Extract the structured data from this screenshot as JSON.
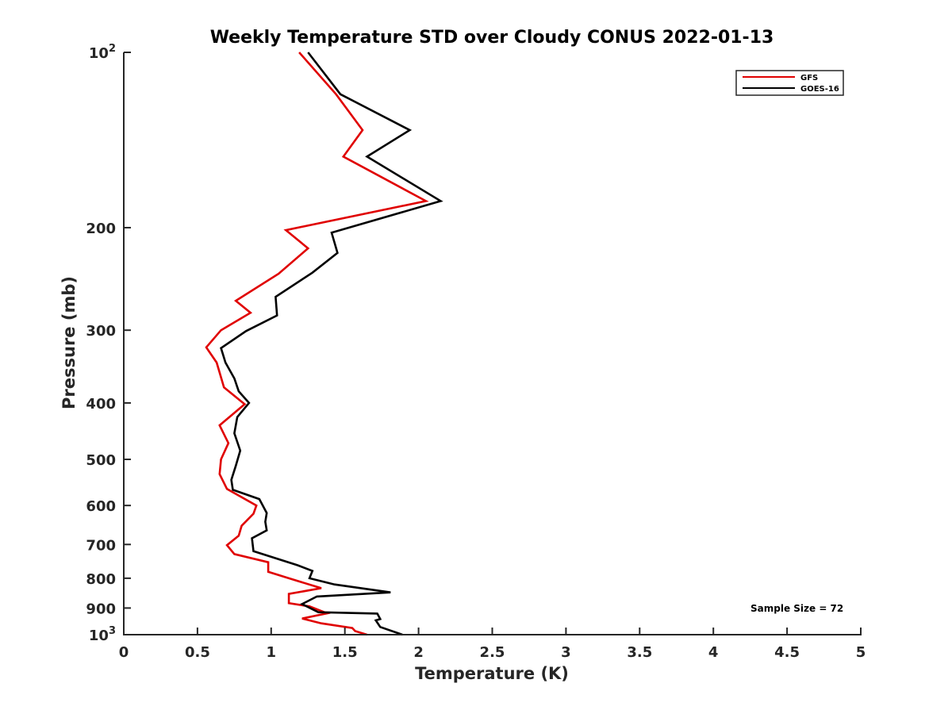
{
  "chart_data": {
    "type": "line",
    "title": "Weekly Temperature STD over Cloudy CONUS 2022-01-13",
    "xlabel": "Temperature (K)",
    "ylabel": "Pressure (mb)",
    "xlim": [
      0,
      5
    ],
    "ylim": [
      100,
      1000
    ],
    "y_scale": "log",
    "y_reversed": true,
    "grid": false,
    "legend_position": "top-right",
    "x_ticks": [
      {
        "value": 0,
        "label": "0"
      },
      {
        "value": 0.5,
        "label": "0.5"
      },
      {
        "value": 1,
        "label": "1"
      },
      {
        "value": 1.5,
        "label": "1.5"
      },
      {
        "value": 2,
        "label": "2"
      },
      {
        "value": 2.5,
        "label": "2.5"
      },
      {
        "value": 3,
        "label": "3"
      },
      {
        "value": 3.5,
        "label": "3.5"
      },
      {
        "value": 4,
        "label": "4"
      },
      {
        "value": 4.5,
        "label": "4.5"
      },
      {
        "value": 5,
        "label": "5"
      }
    ],
    "y_ticks": [
      {
        "value": 100,
        "label": "10",
        "sup": "2"
      },
      {
        "value": 200,
        "label": "200",
        "sup": ""
      },
      {
        "value": 300,
        "label": "300",
        "sup": ""
      },
      {
        "value": 400,
        "label": "400",
        "sup": ""
      },
      {
        "value": 500,
        "label": "500",
        "sup": ""
      },
      {
        "value": 600,
        "label": "600",
        "sup": ""
      },
      {
        "value": 700,
        "label": "700",
        "sup": ""
      },
      {
        "value": 800,
        "label": "800",
        "sup": ""
      },
      {
        "value": 900,
        "label": "900",
        "sup": ""
      },
      {
        "value": 1000,
        "label": "10",
        "sup": "3"
      }
    ],
    "series": [
      {
        "name": "GFS",
        "color": "#e00000",
        "points": [
          [
            1.19,
            100
          ],
          [
            1.44,
            118
          ],
          [
            1.62,
            136
          ],
          [
            1.49,
            151
          ],
          [
            2.05,
            180
          ],
          [
            1.1,
            202
          ],
          [
            1.25,
            217
          ],
          [
            1.05,
            240
          ],
          [
            0.76,
            267
          ],
          [
            0.86,
            280
          ],
          [
            0.66,
            300
          ],
          [
            0.56,
            321
          ],
          [
            0.63,
            341
          ],
          [
            0.68,
            376
          ],
          [
            0.82,
            402
          ],
          [
            0.65,
            437
          ],
          [
            0.71,
            469
          ],
          [
            0.66,
            500
          ],
          [
            0.65,
            530
          ],
          [
            0.7,
            562
          ],
          [
            0.9,
            600
          ],
          [
            0.88,
            620
          ],
          [
            0.8,
            650
          ],
          [
            0.78,
            676
          ],
          [
            0.7,
            702
          ],
          [
            0.75,
            727
          ],
          [
            0.98,
            751
          ],
          [
            0.98,
            780
          ],
          [
            1.12,
            800
          ],
          [
            1.34,
            832
          ],
          [
            1.12,
            851
          ],
          [
            1.12,
            883
          ],
          [
            1.26,
            894
          ],
          [
            1.38,
            919
          ],
          [
            1.21,
            938
          ],
          [
            1.34,
            956
          ],
          [
            1.55,
            974
          ],
          [
            1.57,
            986
          ],
          [
            1.65,
            1000
          ]
        ]
      },
      {
        "name": "GOES-16",
        "color": "#000000",
        "points": [
          [
            1.25,
            100
          ],
          [
            1.47,
            118
          ],
          [
            1.94,
            136
          ],
          [
            1.65,
            151
          ],
          [
            2.15,
            180
          ],
          [
            1.41,
            204
          ],
          [
            1.45,
            221
          ],
          [
            1.28,
            239
          ],
          [
            1.03,
            263
          ],
          [
            1.04,
            283
          ],
          [
            0.83,
            301
          ],
          [
            0.66,
            322
          ],
          [
            0.69,
            341
          ],
          [
            0.75,
            363
          ],
          [
            0.78,
            382
          ],
          [
            0.85,
            400
          ],
          [
            0.77,
            423
          ],
          [
            0.75,
            451
          ],
          [
            0.79,
            483
          ],
          [
            0.76,
            513
          ],
          [
            0.73,
            542
          ],
          [
            0.74,
            564
          ],
          [
            0.92,
            585
          ],
          [
            0.97,
            618
          ],
          [
            0.96,
            640
          ],
          [
            0.97,
            662
          ],
          [
            0.87,
            683
          ],
          [
            0.88,
            719
          ],
          [
            1.18,
            760
          ],
          [
            1.28,
            777
          ],
          [
            1.26,
            800
          ],
          [
            1.43,
            820
          ],
          [
            1.81,
            846
          ],
          [
            1.31,
            860
          ],
          [
            1.21,
            886
          ],
          [
            1.32,
            915
          ],
          [
            1.72,
            920
          ],
          [
            1.74,
            940
          ],
          [
            1.71,
            945
          ],
          [
            1.74,
            970
          ],
          [
            1.89,
            1000
          ]
        ]
      }
    ],
    "annotations": [
      "Sample Size = 72"
    ]
  }
}
